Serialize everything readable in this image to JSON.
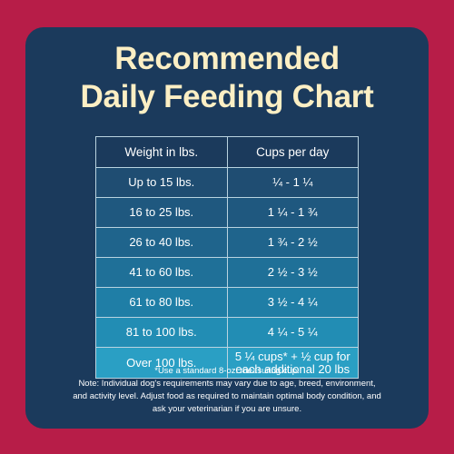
{
  "title_lines": [
    "Recommended",
    "Daily Feeding Chart"
  ],
  "table": {
    "header": [
      "Weight in lbs.",
      "Cups per day"
    ],
    "rows": [
      [
        "Up to 15 lbs.",
        "¼ - 1 ¼"
      ],
      [
        "16 to 25 lbs.",
        "1 ¼ - 1 ¾"
      ],
      [
        "26 to 40 lbs.",
        "1 ¾ - 2 ½"
      ],
      [
        "41 to 60 lbs.",
        "2 ½ - 3 ½"
      ],
      [
        "61 to 80 lbs.",
        "3 ½ - 4 ¼"
      ],
      [
        "81 to 100 lbs.",
        "4 ¼ - 5 ¼"
      ],
      [
        "Over 100 lbs.",
        "5 ¼ cups* + ½ cup for each additional 20 lbs"
      ]
    ]
  },
  "footnote_lines": [
    "*Use a standard 8-oz. measuring cup.",
    "Note: Individual dog's requirements may vary due to age, breed, environment,",
    "and activity level. Adjust food as required to maintain optimal body condition, and",
    "ask your veterinarian if you are unsure."
  ]
}
